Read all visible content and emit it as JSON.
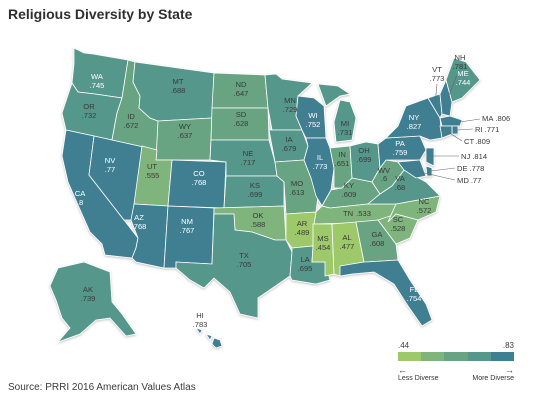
{
  "title": "Religious Diversity by State",
  "source": "Source: PRRI 2016 American Values Atlas",
  "legend": {
    "min_label": ".44",
    "max_label": ".83",
    "less_label": "Less Diverse",
    "more_label": "More Diverse",
    "colors": [
      "#9ec96b",
      "#7fb57b",
      "#68a482",
      "#56978b",
      "#3f7f92"
    ]
  },
  "states": {
    "WA": {
      "abbr": "WA",
      "value": ".745"
    },
    "OR": {
      "abbr": "OR",
      "value": ".732"
    },
    "CA": {
      "abbr": "CA",
      "value": ".8"
    },
    "NV": {
      "abbr": "NV",
      "value": ".77"
    },
    "ID": {
      "abbr": "ID",
      "value": ".672"
    },
    "MT": {
      "abbr": "MT",
      "value": ".688"
    },
    "WY": {
      "abbr": "WY",
      "value": ".637"
    },
    "UT": {
      "abbr": "UT",
      "value": ".555"
    },
    "AZ": {
      "abbr": "AZ",
      "value": ".768"
    },
    "CO": {
      "abbr": "CO",
      "value": ".768"
    },
    "NM": {
      "abbr": "NM",
      "value": ".767"
    },
    "ND": {
      "abbr": "ND",
      "value": ".647"
    },
    "SD": {
      "abbr": "SD",
      "value": ".628"
    },
    "NE": {
      "abbr": "NE",
      "value": ".717"
    },
    "KS": {
      "abbr": "KS",
      "value": ".699"
    },
    "OK": {
      "abbr": "OK",
      "value": ".588"
    },
    "TX": {
      "abbr": "TX",
      "value": ".705"
    },
    "MN": {
      "abbr": "MN",
      "value": ".729"
    },
    "IA": {
      "abbr": "IA",
      "value": ".679"
    },
    "MO": {
      "abbr": "MO",
      "value": ".613"
    },
    "AR": {
      "abbr": "AR",
      "value": ".489"
    },
    "LA": {
      "abbr": "LA",
      "value": ".695"
    },
    "WI": {
      "abbr": "WI",
      "value": ".752"
    },
    "IL": {
      "abbr": "IL",
      "value": ".773"
    },
    "MI": {
      "abbr": "MI",
      "value": ".731"
    },
    "IN": {
      "abbr": "IN",
      "value": ".651"
    },
    "OH": {
      "abbr": "OH",
      "value": ".699"
    },
    "KY": {
      "abbr": "KY",
      "value": ".609"
    },
    "TN": {
      "abbr": "TN",
      "value": ".533"
    },
    "MS": {
      "abbr": "MS",
      "value": ".454"
    },
    "AL": {
      "abbr": "AL",
      "value": ".477"
    },
    "GA": {
      "abbr": "GA",
      "value": ".608"
    },
    "FL": {
      "abbr": "FL",
      "value": ".754"
    },
    "SC": {
      "abbr": "SC",
      "value": ".528"
    },
    "NC": {
      "abbr": "NC",
      "value": ".572"
    },
    "VA": {
      "abbr": "VA",
      "value": ".68"
    },
    "WV": {
      "abbr": "WV",
      "value": ".6"
    },
    "PA": {
      "abbr": "PA",
      "value": ".759"
    },
    "NY": {
      "abbr": "NY",
      "value": ".827"
    },
    "VT": {
      "abbr": "VT",
      "value": ".773"
    },
    "NH": {
      "abbr": "NH",
      "value": ".781"
    },
    "ME": {
      "abbr": "ME",
      "value": ".744"
    },
    "MA": {
      "abbr": "MA",
      "value": ".806"
    },
    "RI": {
      "abbr": "RI",
      "value": ".771"
    },
    "CT": {
      "abbr": "CT",
      "value": ".809"
    },
    "NJ": {
      "abbr": "NJ",
      "value": ".814"
    },
    "DE": {
      "abbr": "DE",
      "value": ".778"
    },
    "MD": {
      "abbr": "MD",
      "value": ".77"
    },
    "AK": {
      "abbr": "AK",
      "value": ".739"
    },
    "HI": {
      "abbr": "HI",
      "value": ".783"
    }
  }
}
